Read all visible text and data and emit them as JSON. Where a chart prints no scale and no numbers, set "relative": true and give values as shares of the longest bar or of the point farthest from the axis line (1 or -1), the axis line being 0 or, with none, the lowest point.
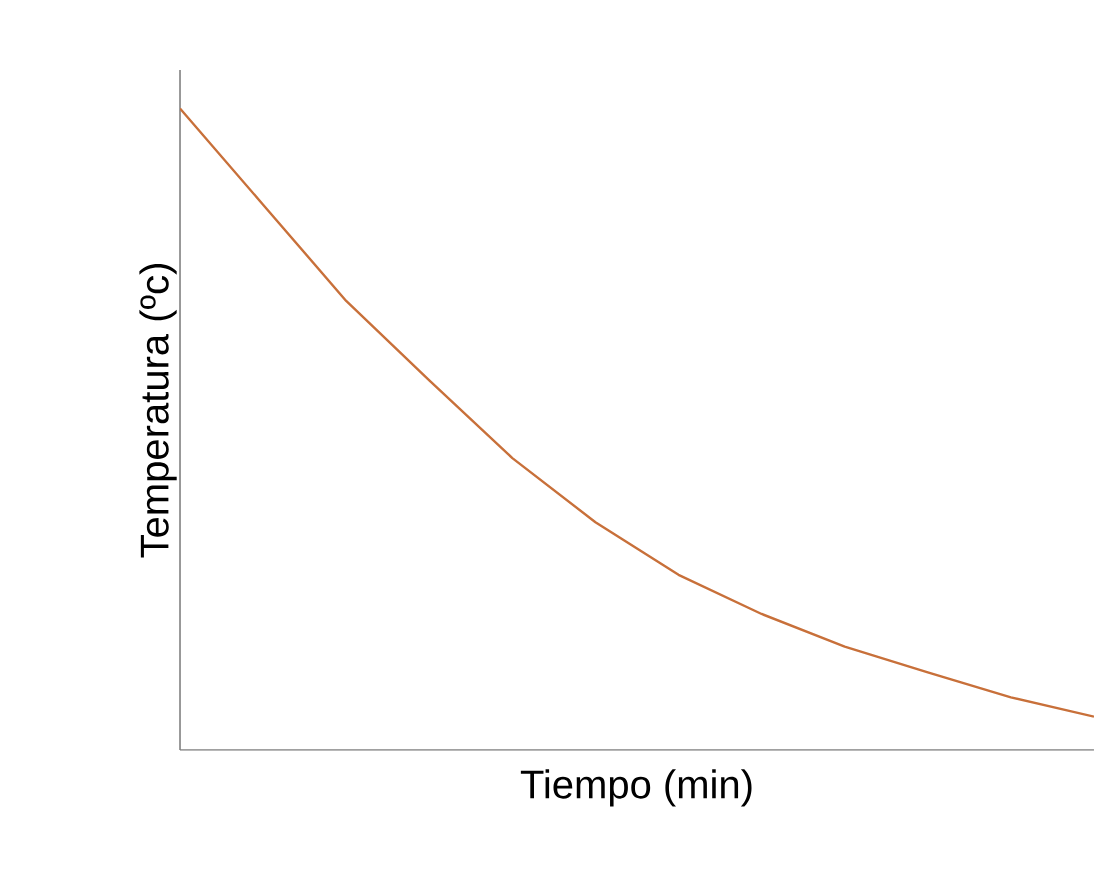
{
  "chart_data": {
    "type": "line",
    "relative": true,
    "xlabel": "Tiempo (min)",
    "ylabel": "Temperatura (ºc)",
    "categories": [
      null,
      null,
      null,
      null,
      null,
      null,
      null,
      null,
      null,
      null,
      null,
      null
    ],
    "series": [
      {
        "color": "#c8703a",
        "values": [
          1.0,
          0.85,
          0.7,
          0.576,
          0.455,
          0.355,
          0.273,
          0.212,
          0.161,
          0.121,
          0.082,
          0.052
        ]
      }
    ]
  }
}
